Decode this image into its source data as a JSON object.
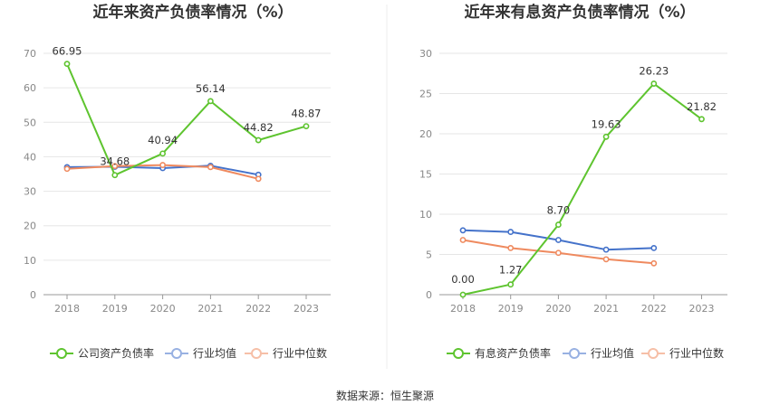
{
  "source": "数据来源：恒生聚源",
  "chart_data": [
    {
      "type": "line",
      "title": "近年来资产负债率情况（%）",
      "categories": [
        "2018",
        "2019",
        "2020",
        "2021",
        "2022",
        "2023"
      ],
      "ylim": [
        0,
        70
      ],
      "yticks": [
        0,
        10,
        20,
        30,
        40,
        50,
        60,
        70
      ],
      "grid": true,
      "legend_position": "bottom",
      "series": [
        {
          "name": "公司资产负债率",
          "color": "#5ec42f",
          "values": [
            66.95,
            34.68,
            40.94,
            56.14,
            44.82,
            48.87
          ],
          "labels": [
            "66.95",
            "34.68",
            "40.94",
            "56.14",
            "44.82",
            "48.87"
          ]
        },
        {
          "name": "行业均值",
          "color": "#4472ca",
          "values": [
            37.0,
            37.1,
            36.7,
            37.4,
            34.8,
            null
          ]
        },
        {
          "name": "行业中位数",
          "color": "#ef8a5f",
          "values": [
            36.5,
            37.3,
            37.6,
            37.0,
            33.6,
            null
          ]
        }
      ]
    },
    {
      "type": "line",
      "title": "近年来有息资产负债率情况（%）",
      "categories": [
        "2018",
        "2019",
        "2020",
        "2021",
        "2022",
        "2023"
      ],
      "ylim": [
        0,
        30
      ],
      "yticks": [
        0,
        5,
        10,
        15,
        20,
        25,
        30
      ],
      "grid": true,
      "legend_position": "bottom",
      "series": [
        {
          "name": "有息资产负债率",
          "color": "#5ec42f",
          "values": [
            0.0,
            1.27,
            8.7,
            19.63,
            26.23,
            21.82
          ],
          "labels": [
            "0.00",
            "1.27",
            "8.70",
            "19.63",
            "26.23",
            "21.82"
          ]
        },
        {
          "name": "行业均值",
          "color": "#4472ca",
          "values": [
            8.0,
            7.8,
            6.8,
            5.6,
            5.8,
            null
          ]
        },
        {
          "name": "行业中位数",
          "color": "#ef8a5f",
          "values": [
            6.8,
            5.8,
            5.2,
            4.4,
            3.9,
            null
          ]
        }
      ]
    }
  ]
}
